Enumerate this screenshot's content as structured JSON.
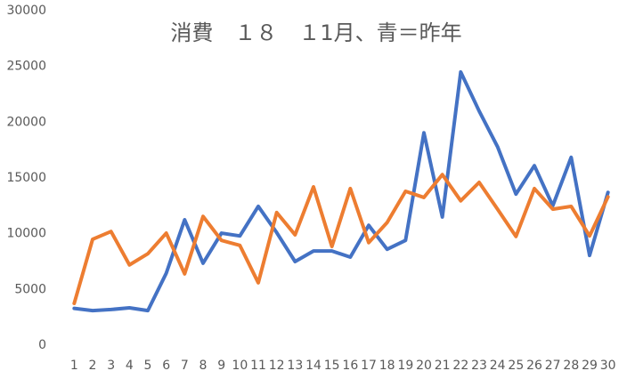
{
  "chart_data": {
    "type": "line",
    "title": "消費　１８　１1月、青＝昨年",
    "categories": [
      "1",
      "2",
      "3",
      "4",
      "5",
      "6",
      "7",
      "8",
      "9",
      "10",
      "11",
      "12",
      "13",
      "14",
      "15",
      "16",
      "17",
      "18",
      "19",
      "20",
      "21",
      "22",
      "23",
      "24",
      "25",
      "26",
      "27",
      "28",
      "29",
      "30"
    ],
    "series": [
      {
        "color": "#4472c4",
        "values": [
          3300,
          3100,
          3200,
          3350,
          3100,
          6450,
          11250,
          7350,
          10050,
          9800,
          12450,
          10100,
          7500,
          8450,
          8450,
          7900,
          10750,
          8600,
          9400,
          19050,
          11500,
          24500,
          21000,
          17800,
          13550,
          16100,
          12500,
          16850,
          8050,
          13700
        ]
      },
      {
        "color": "#ed7d31",
        "values": [
          3750,
          9500,
          10200,
          7200,
          8200,
          10050,
          6400,
          11550,
          9400,
          8950,
          5600,
          11900,
          9900,
          14200,
          8850,
          14050,
          9200,
          11000,
          13800,
          13250,
          15300,
          12950,
          14600,
          12200,
          9750,
          14050,
          12200,
          12450,
          9800,
          13300
        ]
      }
    ],
    "ylim": [
      0,
      30000
    ],
    "yticks": [
      0,
      5000,
      10000,
      15000,
      20000,
      25000,
      30000
    ]
  }
}
